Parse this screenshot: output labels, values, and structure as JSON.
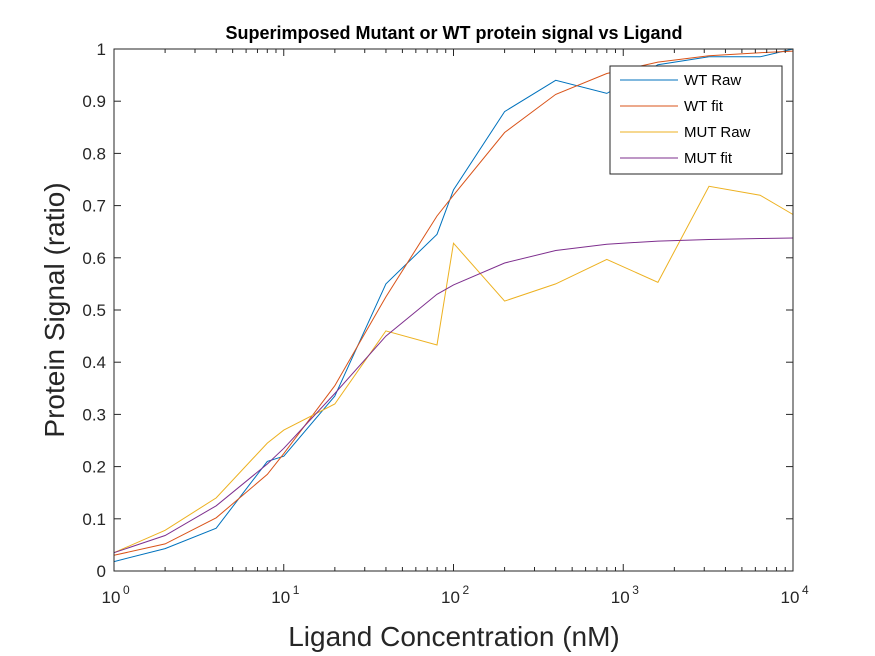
{
  "chart_data": {
    "type": "line",
    "title": "Superimposed Mutant or WT protein signal vs Ligand",
    "xlabel": "Ligand Concentration (nM)",
    "ylabel": "Protein Signal (ratio)",
    "xscale": "log",
    "xlim": [
      1,
      10000
    ],
    "ylim": [
      0,
      1
    ],
    "x_ticks": [
      {
        "base": "10",
        "exp": "0",
        "value": 1
      },
      {
        "base": "10",
        "exp": "1",
        "value": 10
      },
      {
        "base": "10",
        "exp": "2",
        "value": 100
      },
      {
        "base": "10",
        "exp": "3",
        "value": 1000
      },
      {
        "base": "10",
        "exp": "4",
        "value": 10000
      }
    ],
    "y_ticks": [
      "0",
      "0.1",
      "0.2",
      "0.3",
      "0.4",
      "0.5",
      "0.6",
      "0.7",
      "0.8",
      "0.9",
      "1"
    ],
    "grid": false,
    "legend_position": "top-right",
    "series": [
      {
        "name": "WT Raw",
        "color": "#0072BD",
        "x": [
          1,
          2,
          4,
          8,
          10,
          20,
          40,
          80,
          100,
          200,
          400,
          800,
          1600,
          3200,
          6400,
          10000
        ],
        "y": [
          0.018,
          0.043,
          0.082,
          0.21,
          0.22,
          0.335,
          0.55,
          0.645,
          0.73,
          0.88,
          0.94,
          0.915,
          0.97,
          0.985,
          0.985,
          1.0
        ]
      },
      {
        "name": "WT fit",
        "color": "#D95319",
        "x": [
          1,
          2,
          4,
          8,
          10,
          20,
          40,
          80,
          100,
          200,
          400,
          800,
          1600,
          3200,
          6400,
          10000
        ],
        "y": [
          0.03,
          0.052,
          0.102,
          0.185,
          0.225,
          0.355,
          0.525,
          0.68,
          0.72,
          0.84,
          0.913,
          0.953,
          0.975,
          0.987,
          0.993,
          0.996
        ]
      },
      {
        "name": "MUT Raw",
        "color": "#EDB120",
        "x": [
          1,
          2,
          4,
          8,
          10,
          20,
          40,
          80,
          100,
          200,
          400,
          800,
          1600,
          3200,
          6400,
          10000
        ],
        "y": [
          0.035,
          0.078,
          0.14,
          0.245,
          0.27,
          0.32,
          0.46,
          0.433,
          0.628,
          0.517,
          0.55,
          0.597,
          0.553,
          0.737,
          0.72,
          0.683
        ]
      },
      {
        "name": "MUT fit",
        "color": "#7E2F8E",
        "x": [
          1,
          2,
          4,
          8,
          10,
          20,
          40,
          80,
          100,
          200,
          400,
          800,
          1600,
          3200,
          6400,
          10000
        ],
        "y": [
          0.035,
          0.068,
          0.125,
          0.205,
          0.235,
          0.34,
          0.45,
          0.53,
          0.548,
          0.59,
          0.614,
          0.626,
          0.632,
          0.635,
          0.637,
          0.638
        ]
      }
    ]
  }
}
